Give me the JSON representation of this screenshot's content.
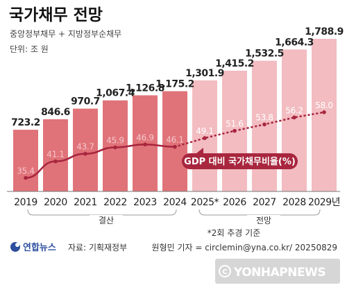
{
  "header": {
    "title": "국가채무 전망",
    "subtitle": "중앙정부채무 + 지방정부순채무",
    "unit": "단위: 조 원"
  },
  "chart_data": {
    "type": "bar",
    "categories": [
      "2019",
      "2020",
      "2021",
      "2022",
      "2023",
      "2024",
      "2025*",
      "2026",
      "2027",
      "2028",
      "2029년"
    ],
    "series": [
      {
        "values": [
          723.2,
          846.6,
          970.7,
          1067.4,
          1126.8,
          1175.2,
          1301.9,
          1415.2,
          1532.5,
          1664.3,
          1788.9
        ]
      },
      {
        "name": "GDP 대비 국가채무비율(%)",
        "values": [
          35.4,
          41.1,
          43.7,
          45.9,
          46.9,
          46.1,
          49.1,
          51.6,
          53.8,
          56.2,
          58.0
        ]
      }
    ],
    "value_labels": [
      "723.2",
      "846.6",
      "970.7",
      "1,067.4",
      "1,126.8",
      "1,175.2",
      "1,301.9",
      "1,415.2",
      "1,532.5",
      "1,664.3",
      "1,788.9"
    ],
    "ratio_labels": [
      "35.4",
      "41.1",
      "43.7",
      "45.9",
      "46.9",
      "46.1",
      "49.1",
      "51.6",
      "53.8",
      "56.2",
      "58.0"
    ],
    "actual_count": 6,
    "colors": {
      "actual_bar": "#e07379",
      "forecast_bar": "#f2bcc1",
      "line": "#a8263e",
      "ratio_actual_text": "#f5c6cb",
      "ratio_forecast_text": "#ffffff"
    }
  },
  "groups": {
    "actual_label": "결산",
    "forecast_label": "전망",
    "note": "*2회 추경 기준"
  },
  "footer": {
    "logo_text": "연합뉴스",
    "source": "자료: 기획재정부",
    "credit": "원형민 기자 = circlemin@yna.co.kr/ 20250829"
  },
  "watermark": "YONHAPNEWS"
}
